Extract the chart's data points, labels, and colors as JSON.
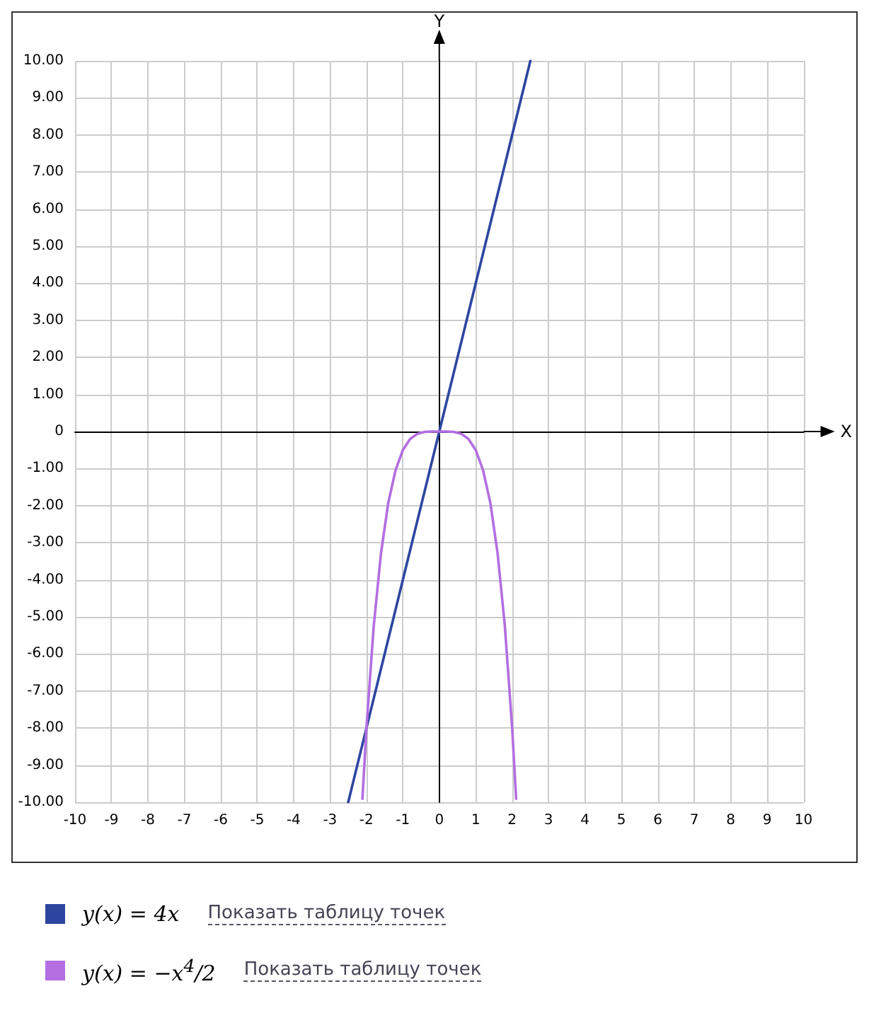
{
  "chart_data": {
    "type": "line",
    "xlabel": "X",
    "ylabel": "Y",
    "xlim": [
      -10,
      10
    ],
    "ylim": [
      -10,
      10
    ],
    "xticks": [
      -10,
      -9,
      -8,
      -7,
      -6,
      -5,
      -4,
      -3,
      -2,
      -1,
      0,
      1,
      2,
      3,
      4,
      5,
      6,
      7,
      8,
      9,
      10
    ],
    "yticks": [
      {
        "value": -10,
        "label": "-10.00"
      },
      {
        "value": -9,
        "label": "-9.00"
      },
      {
        "value": -8,
        "label": "-8.00"
      },
      {
        "value": -7,
        "label": "-7.00"
      },
      {
        "value": -6,
        "label": "-6.00"
      },
      {
        "value": -5,
        "label": "-5.00"
      },
      {
        "value": -4,
        "label": "-4.00"
      },
      {
        "value": -3,
        "label": "-3.00"
      },
      {
        "value": -2,
        "label": "-2.00"
      },
      {
        "value": -1,
        "label": "-1.00"
      },
      0,
      {
        "value": 1,
        "label": "1.00"
      },
      {
        "value": 2,
        "label": "2.00"
      },
      {
        "value": 3,
        "label": "3.00"
      },
      {
        "value": 4,
        "label": "4.00"
      },
      {
        "value": 5,
        "label": "5.00"
      },
      {
        "value": 6,
        "label": "6.00"
      },
      {
        "value": 7,
        "label": "7.00"
      },
      {
        "value": 8,
        "label": "8.00"
      },
      {
        "value": 9,
        "label": "9.00"
      },
      {
        "value": 10,
        "label": "10.00"
      }
    ],
    "grid": true,
    "legend": "bottom",
    "marker": "none",
    "line_style": "solid",
    "series": [
      {
        "name": "y(x) = 4x",
        "color": "#2e45a0",
        "x": [
          -2.5,
          2.5
        ],
        "values": [
          -10,
          10
        ]
      },
      {
        "name": "y(x) = −x$^{4}$/2",
        "color": "#b36ee0",
        "x": [
          -2.11,
          -2,
          -1.8,
          -1.6,
          -1.4,
          -1.2,
          -1,
          -0.8,
          -0.6,
          -0.4,
          -0.2,
          0,
          0.2,
          0.4,
          0.6,
          0.8,
          1,
          1.2,
          1.4,
          1.6,
          1.8,
          2,
          2.11
        ],
        "values": [
          -9.91,
          -8,
          -5.25,
          -3.28,
          -1.92,
          -1.04,
          -0.5,
          -0.2,
          -0.06,
          -0.01,
          0,
          0,
          0,
          -0.01,
          -0.06,
          -0.2,
          -0.5,
          -1.04,
          -1.92,
          -3.28,
          -5.25,
          -8,
          -9.91
        ]
      }
    ],
    "annotations": [
      "Показать таблицу точек",
      "Показать таблицу точек"
    ]
  }
}
